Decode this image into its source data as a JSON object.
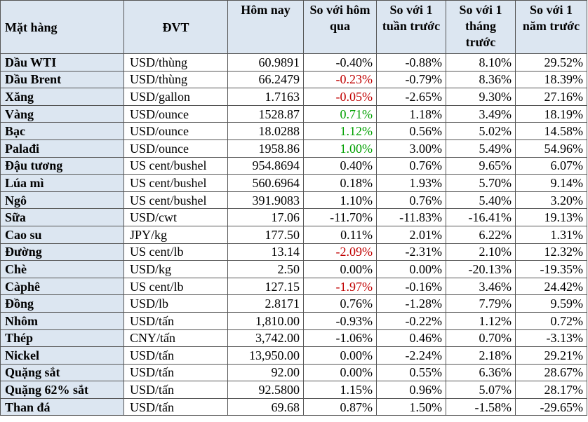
{
  "headers": [
    "Mặt hàng",
    "ĐVT",
    "Hôm nay",
    "So với hôm qua",
    "So với 1 tuần trước",
    "So với 1 tháng trước",
    "So với 1 năm trước"
  ],
  "colors": {
    "header_bg": "#dce6f1",
    "negative_highlight": "#c00000",
    "positive_highlight": "#00a000"
  },
  "rows": [
    {
      "name": "Dầu WTI",
      "unit": "USD/thùng",
      "today": "60.9891",
      "d1": "-0.40%",
      "w1": "-0.88%",
      "m1": "8.10%",
      "y1": "29.52%",
      "d1_color": ""
    },
    {
      "name": "Dầu Brent",
      "unit": "USD/thùng",
      "today": "66.2479",
      "d1": "-0.23%",
      "w1": "-0.79%",
      "m1": "8.36%",
      "y1": "18.39%",
      "d1_color": "neg"
    },
    {
      "name": "Xăng",
      "unit": "USD/gallon",
      "today": "1.7163",
      "d1": "-0.05%",
      "w1": "-2.65%",
      "m1": "9.30%",
      "y1": "27.16%",
      "d1_color": "neg"
    },
    {
      "name": "Vàng",
      "unit": "USD/ounce",
      "today": "1528.87",
      "d1": "0.71%",
      "w1": "1.18%",
      "m1": "3.49%",
      "y1": "18.19%",
      "d1_color": "pos"
    },
    {
      "name": "Bạc",
      "unit": "USD/ounce",
      "today": "18.0288",
      "d1": "1.12%",
      "w1": "0.56%",
      "m1": "5.02%",
      "y1": "14.58%",
      "d1_color": "pos"
    },
    {
      "name": "Palađi",
      "unit": "USD/ounce",
      "today": "1958.86",
      "d1": "1.00%",
      "w1": "3.00%",
      "m1": "5.49%",
      "y1": "54.96%",
      "d1_color": "pos"
    },
    {
      "name": "Đậu tương",
      "unit": "US cent/bushel",
      "today": "954.8694",
      "d1": "0.40%",
      "w1": "0.76%",
      "m1": "9.65%",
      "y1": "6.07%",
      "d1_color": ""
    },
    {
      "name": "Lúa mì",
      "unit": "US cent/bushel",
      "today": "560.6964",
      "d1": "0.18%",
      "w1": "1.93%",
      "m1": "5.70%",
      "y1": "9.14%",
      "d1_color": ""
    },
    {
      "name": "Ngô",
      "unit": "US cent/bushel",
      "today": "391.9083",
      "d1": "1.10%",
      "w1": "0.76%",
      "m1": "5.40%",
      "y1": "3.20%",
      "d1_color": ""
    },
    {
      "name": "Sữa",
      "unit": "USD/cwt",
      "today": "17.06",
      "d1": "-11.70%",
      "w1": "-11.83%",
      "m1": "-16.41%",
      "y1": "19.13%",
      "d1_color": ""
    },
    {
      "name": "Cao su",
      "unit": "JPY/kg",
      "today": "177.50",
      "d1": "0.11%",
      "w1": "2.01%",
      "m1": "6.22%",
      "y1": "1.31%",
      "d1_color": ""
    },
    {
      "name": "Đường",
      "unit": "US cent/lb",
      "today": "13.14",
      "d1": "-2.09%",
      "w1": "-2.31%",
      "m1": "2.10%",
      "y1": "12.32%",
      "d1_color": "neg"
    },
    {
      "name": "Chè",
      "unit": "USD/kg",
      "today": "2.50",
      "d1": "0.00%",
      "w1": "0.00%",
      "m1": "-20.13%",
      "y1": "-19.35%",
      "d1_color": ""
    },
    {
      "name": "Càphê",
      "unit": "US cent/lb",
      "today": "127.15",
      "d1": "-1.97%",
      "w1": "-0.16%",
      "m1": "3.46%",
      "y1": "24.42%",
      "d1_color": "neg"
    },
    {
      "name": "Đồng",
      "unit": "USD/lb",
      "today": "2.8171",
      "d1": "0.76%",
      "w1": "-1.28%",
      "m1": "7.79%",
      "y1": "9.59%",
      "d1_color": ""
    },
    {
      "name": "Nhôm",
      "unit": "USD/tấn",
      "today": "1,810.00",
      "d1": "-0.93%",
      "w1": "-0.22%",
      "m1": "1.12%",
      "y1": "0.72%",
      "d1_color": ""
    },
    {
      "name": "Thép",
      "unit": "CNY/tấn",
      "today": "3,742.00",
      "d1": "-1.06%",
      "w1": "0.46%",
      "m1": "0.70%",
      "y1": "-3.13%",
      "d1_color": ""
    },
    {
      "name": "Nickel",
      "unit": "USD/tấn",
      "today": "13,950.00",
      "d1": "0.00%",
      "w1": "-2.24%",
      "m1": "2.18%",
      "y1": "29.21%",
      "d1_color": ""
    },
    {
      "name": "Quặng sắt",
      "unit": "USD/tấn",
      "today": "92.00",
      "d1": "0.00%",
      "w1": "0.55%",
      "m1": "6.36%",
      "y1": "28.67%",
      "d1_color": ""
    },
    {
      "name": "Quặng 62% sắt",
      "unit": "USD/tấn",
      "today": "92.5800",
      "d1": "1.15%",
      "w1": "0.96%",
      "m1": "5.07%",
      "y1": "28.17%",
      "d1_color": ""
    },
    {
      "name": "Than đá",
      "unit": "USD/tấn",
      "today": "69.68",
      "d1": "0.87%",
      "w1": "1.50%",
      "m1": "-1.58%",
      "y1": "-29.65%",
      "d1_color": ""
    }
  ]
}
